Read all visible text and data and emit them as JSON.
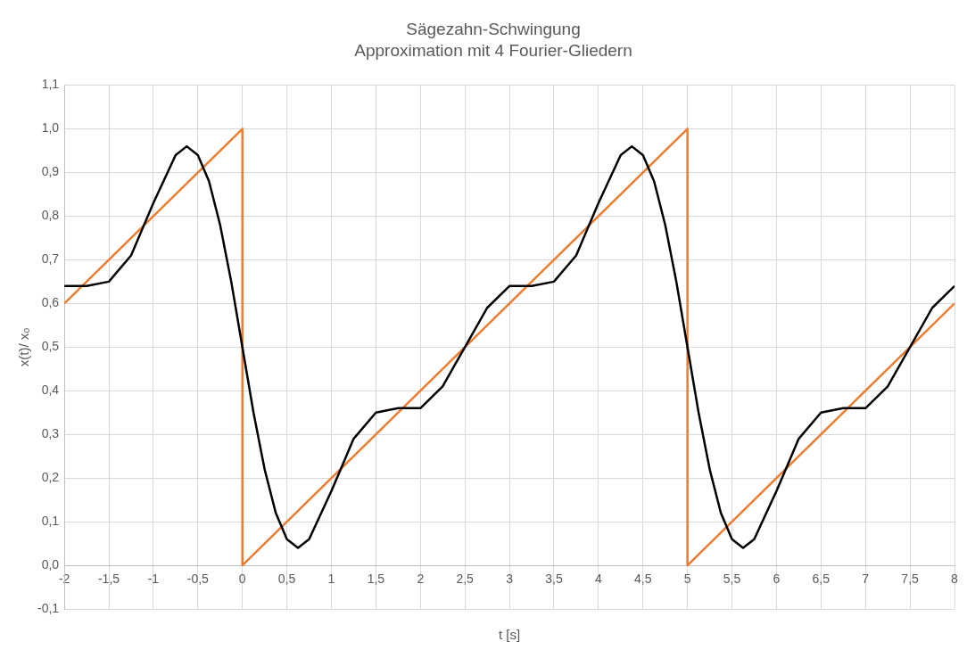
{
  "chart_data": {
    "type": "line",
    "title": "Sägezahn-Schwingung",
    "subtitle": "Approximation mit 4 Fourier-Gliedern",
    "xlabel": "t [s]",
    "ylabel": "x(t)/ x₀",
    "series": [
      {
        "color": "#000000",
        "x": [
          -2,
          -1.75,
          -1.5,
          -1.25,
          -1.125,
          -1,
          -0.75,
          -0.625,
          -0.5,
          -0.375,
          -0.25,
          -0.125,
          0,
          0.125,
          0.25,
          0.375,
          0.5,
          0.625,
          0.75,
          1,
          1.125,
          1.25,
          1.5,
          1.75,
          2,
          2.25,
          2.5,
          2.75,
          3,
          3.25,
          3.5,
          3.75,
          3.875,
          4,
          4.25,
          4.375,
          4.5,
          4.625,
          4.75,
          4.875,
          5,
          5.125,
          5.25,
          5.375,
          5.5,
          5.625,
          5.75,
          6,
          6.125,
          6.25,
          6.5,
          6.75,
          7,
          7.25,
          7.5,
          7.75,
          8
        ],
        "values": [
          0.64,
          0.64,
          0.65,
          0.71,
          0.77,
          0.83,
          0.94,
          0.96,
          0.94,
          0.88,
          0.78,
          0.65,
          0.5,
          0.35,
          0.22,
          0.12,
          0.06,
          0.04,
          0.06,
          0.17,
          0.23,
          0.29,
          0.35,
          0.36,
          0.36,
          0.41,
          0.5,
          0.59,
          0.64,
          0.64,
          0.65,
          0.71,
          0.77,
          0.83,
          0.94,
          0.96,
          0.94,
          0.88,
          0.78,
          0.65,
          0.5,
          0.35,
          0.22,
          0.12,
          0.06,
          0.04,
          0.06,
          0.17,
          0.23,
          0.29,
          0.35,
          0.36,
          0.36,
          0.41,
          0.5,
          0.59,
          0.64
        ]
      },
      {
        "color": "#ed7d31",
        "x": [
          -2,
          0,
          0,
          5,
          5,
          8
        ],
        "values": [
          0.6,
          1,
          0,
          1,
          0,
          0.6
        ]
      }
    ],
    "xlim": [
      -2,
      8
    ],
    "xticks": [
      -2,
      {
        "value": -1.5,
        "label": "-1,5"
      },
      -1,
      {
        "value": -0.5,
        "label": "-0,5"
      },
      0,
      {
        "value": 0.5,
        "label": "0,5"
      },
      1,
      {
        "value": 1.5,
        "label": "1,5"
      },
      2,
      {
        "value": 2.5,
        "label": "2,5"
      },
      3,
      {
        "value": 3.5,
        "label": "3,5"
      },
      4,
      {
        "value": 4.5,
        "label": "4,5"
      },
      5,
      {
        "value": 5.5,
        "label": "5,5"
      },
      6,
      {
        "value": 6.5,
        "label": "6,5"
      },
      7,
      {
        "value": 7.5,
        "label": "7,5"
      },
      8
    ],
    "ylim": [
      -0.1,
      1.1
    ],
    "yticks": [
      {
        "value": -0.1,
        "label": "-0,1"
      },
      {
        "value": 0,
        "label": "0,0"
      },
      {
        "value": 0.1,
        "label": "0,1"
      },
      {
        "value": 0.2,
        "label": "0,2"
      },
      {
        "value": 0.3,
        "label": "0,3"
      },
      {
        "value": 0.4,
        "label": "0,4"
      },
      {
        "value": 0.5,
        "label": "0,5"
      },
      {
        "value": 0.6,
        "label": "0,6"
      },
      {
        "value": 0.7,
        "label": "0,7"
      },
      {
        "value": 0.8,
        "label": "0,8"
      },
      {
        "value": 0.9,
        "label": "0,9"
      },
      {
        "value": 1,
        "label": "1,0"
      },
      {
        "value": 1.1,
        "label": "1,1"
      }
    ],
    "grid": true,
    "legend": false,
    "marker": "none",
    "line_style": "solid"
  }
}
